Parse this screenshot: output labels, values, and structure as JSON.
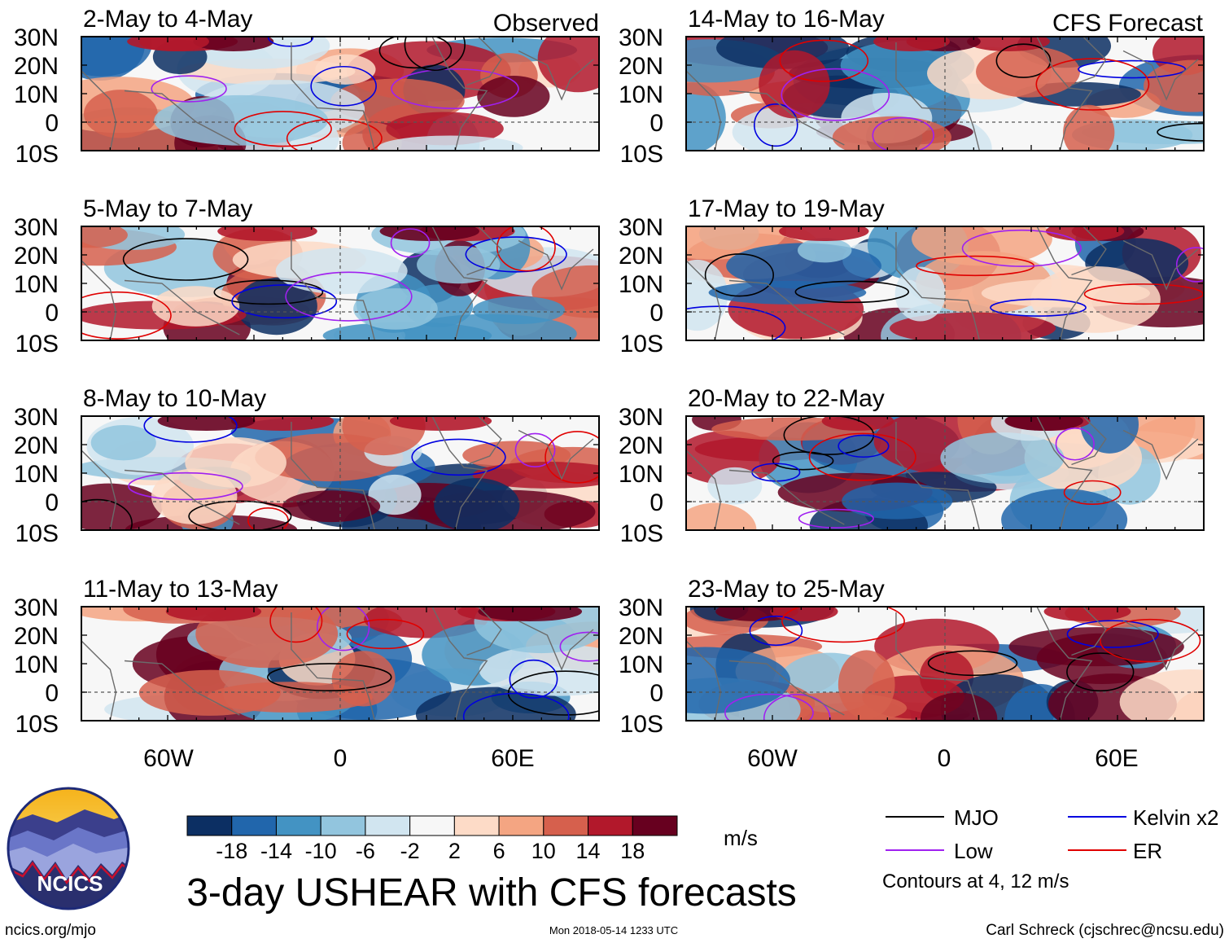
{
  "column_headers": {
    "left": "Observed",
    "right": "CFS Forecast"
  },
  "panels": [
    {
      "title": "2-May to 4-May",
      "column": "observed",
      "seed": 11
    },
    {
      "title": "5-May to 7-May",
      "column": "observed",
      "seed": 23
    },
    {
      "title": "8-May to 10-May",
      "column": "observed",
      "seed": 37
    },
    {
      "title": "11-May to 13-May",
      "column": "observed",
      "seed": 41
    },
    {
      "title": "14-May to 16-May",
      "column": "forecast",
      "seed": 53
    },
    {
      "title": "17-May to 19-May",
      "column": "forecast",
      "seed": 67
    },
    {
      "title": "20-May to 22-May",
      "column": "forecast",
      "seed": 71
    },
    {
      "title": "23-May to 25-May",
      "column": "forecast",
      "seed": 89
    }
  ],
  "axes": {
    "lon_ticks": [
      "60W",
      "0",
      "60E"
    ],
    "lon_values": [
      -60,
      0,
      60
    ],
    "lon_range": [
      -90,
      90
    ],
    "lat_ticks": [
      "30N",
      "20N",
      "10N",
      "0",
      "10S"
    ],
    "lat_values": [
      30,
      20,
      10,
      0,
      -10
    ],
    "lat_range": [
      -10,
      30
    ]
  },
  "colorbar": {
    "labels": [
      "-18",
      "-14",
      "-10",
      "-6",
      "-2",
      "2",
      "6",
      "10",
      "14",
      "18"
    ],
    "colors": [
      "#0c2f63",
      "#2166ac",
      "#4393c3",
      "#92c5de",
      "#d1e5f0",
      "#f7f7f7",
      "#fddbc7",
      "#f4a582",
      "#d6604d",
      "#b2182b",
      "#67001f"
    ],
    "units": "m/s"
  },
  "legend": {
    "items": [
      {
        "label": "MJO",
        "color": "#000000"
      },
      {
        "label": "Kelvin x2",
        "color": "#0000e0"
      },
      {
        "label": "Low",
        "color": "#a020f0"
      },
      {
        "label": "ER",
        "color": "#e00000"
      }
    ],
    "note": "Contours at 4, 12 m/s"
  },
  "logo": {
    "text": "NCICS"
  },
  "title": "3-day USHEAR with CFS forecasts",
  "footer": {
    "left": "ncics.org/mjo",
    "center": "Mon 2018-05-14 1233 UTC",
    "right": "Carl Schreck (cjschrec@ncsu.edu)"
  }
}
